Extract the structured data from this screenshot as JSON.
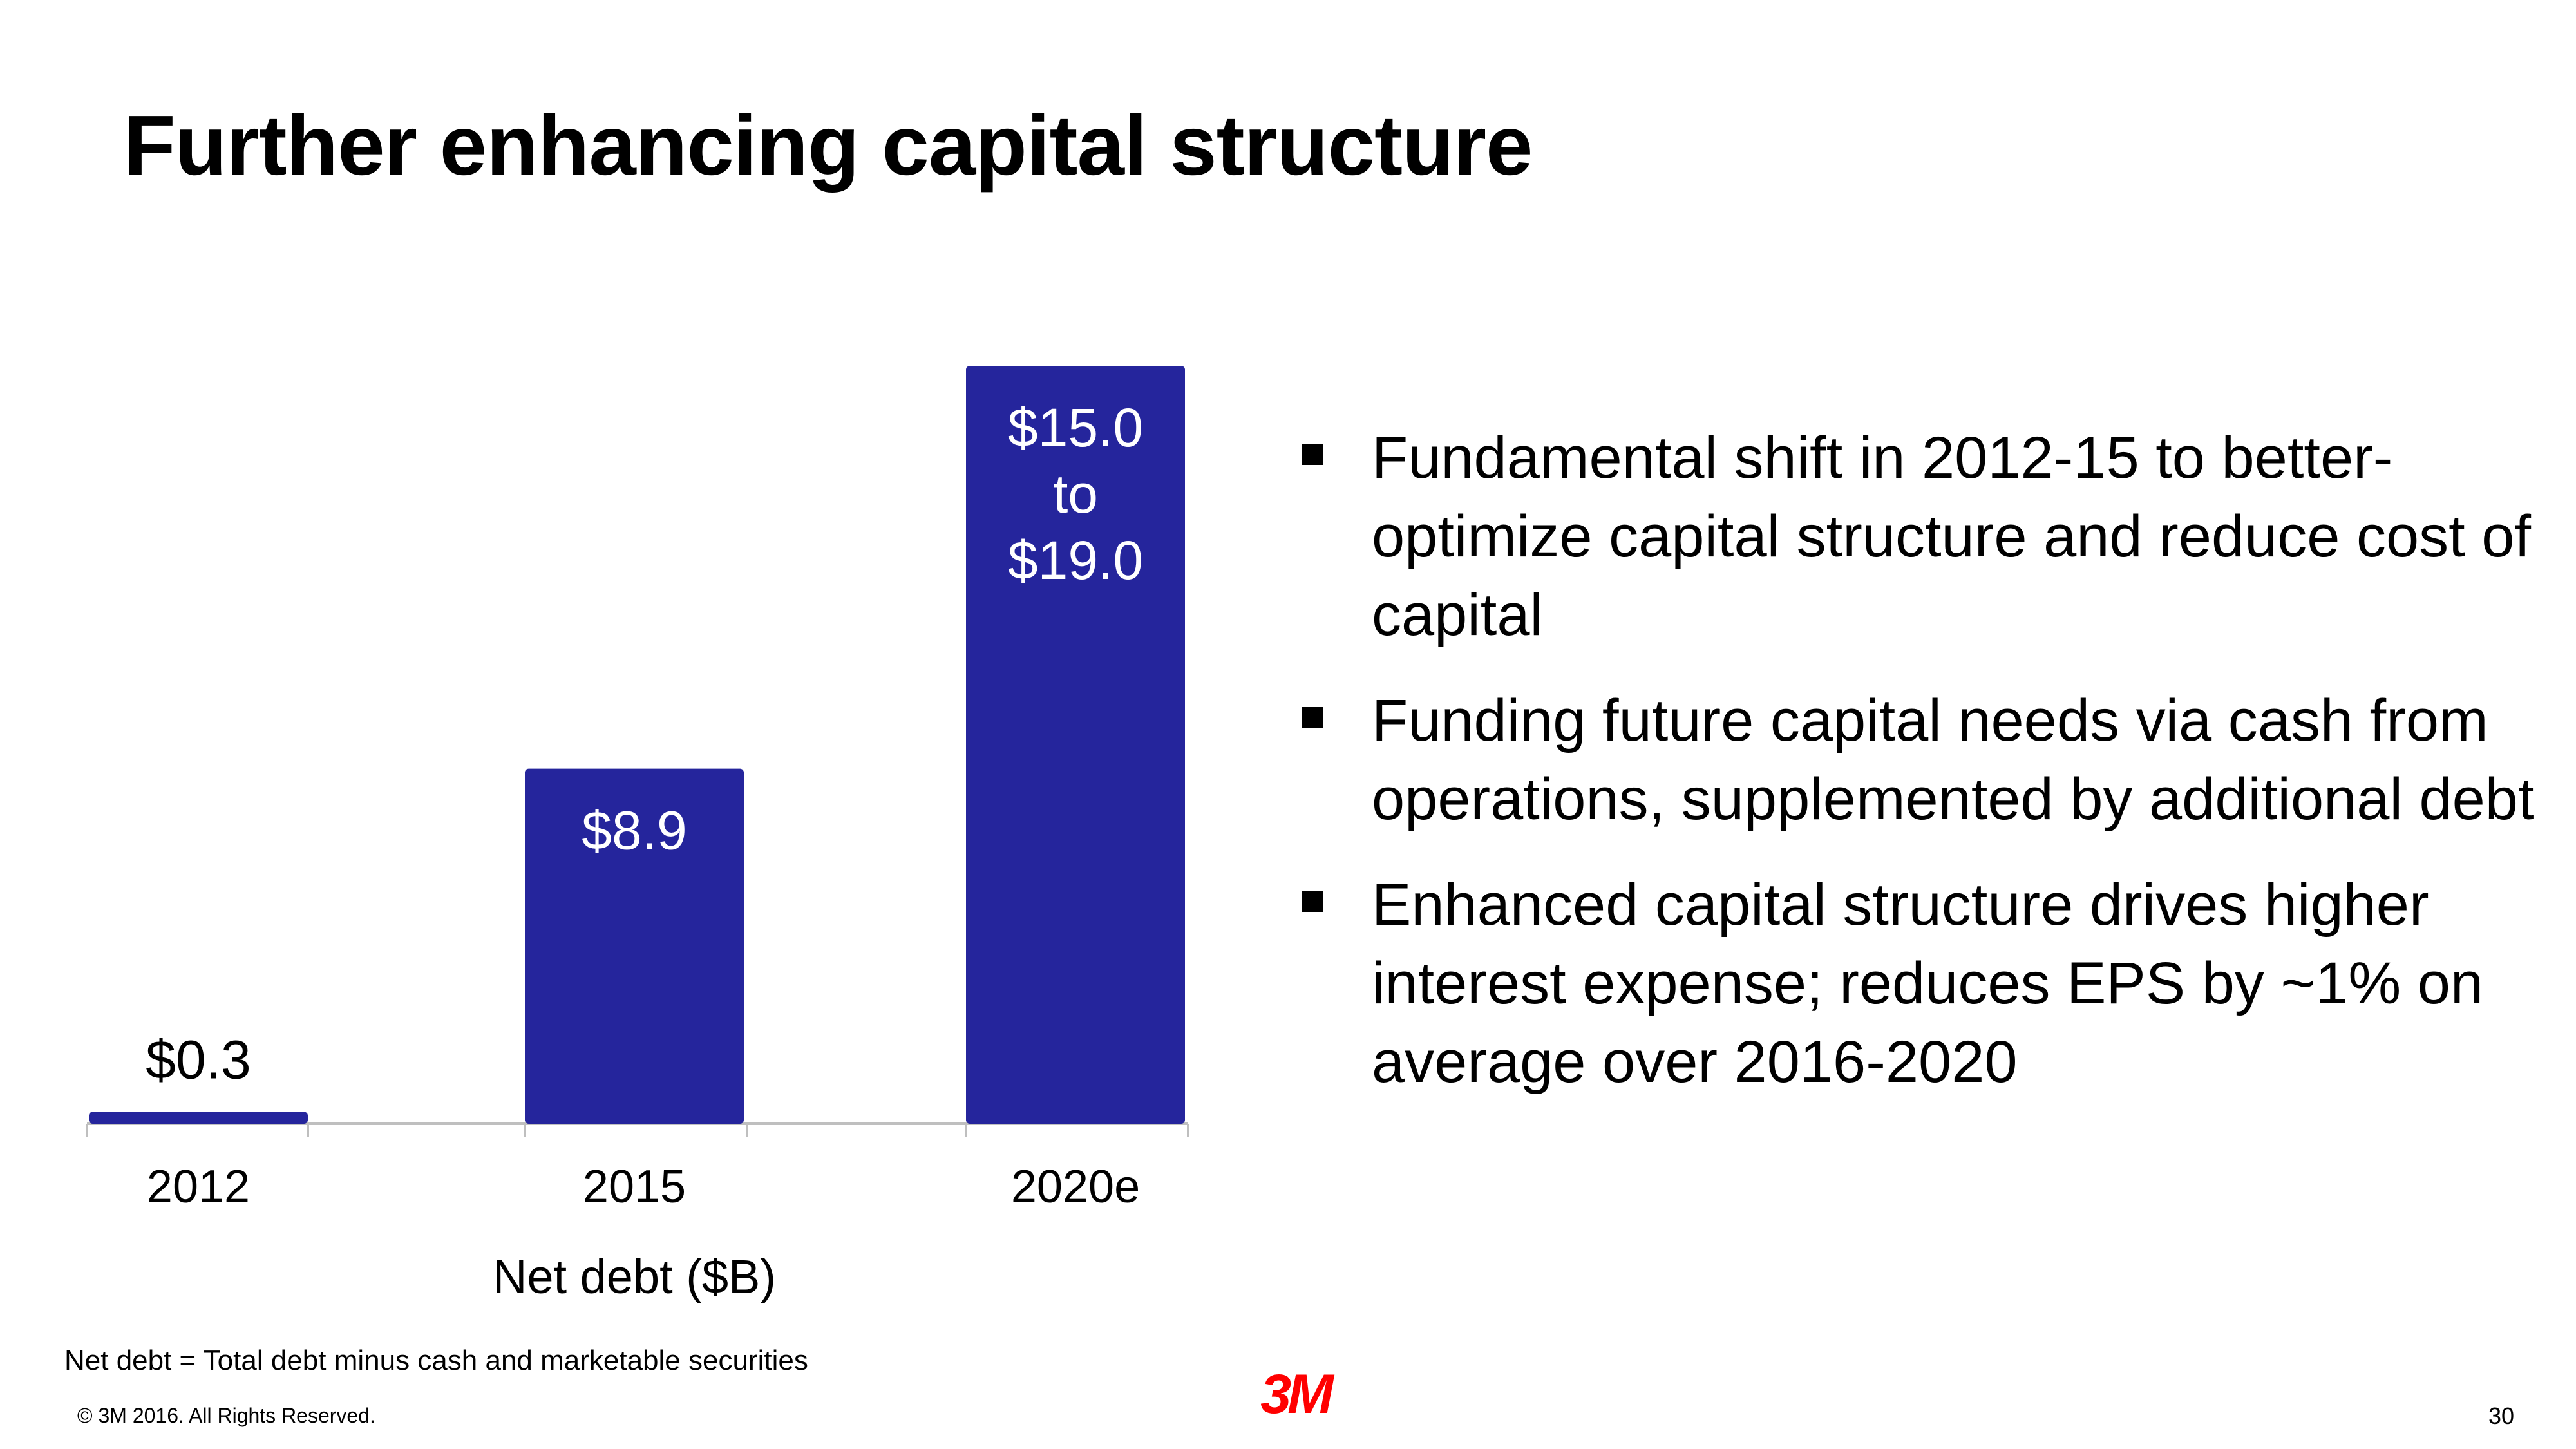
{
  "slide": {
    "title": "Further enhancing capital structure",
    "bullets": [
      "Fundamental shift in 2012-15 to better-optimize capital structure and reduce cost of capital",
      "Funding future capital needs via cash from operations, supplemented by additional debt",
      "Enhanced capital structure drives higher interest expense; reduces EPS by ~1% on average over 2016-2020"
    ],
    "footnote": "Net debt = Total debt minus cash and marketable securities",
    "copyright": "© 3M 2016. All Rights Reserved.",
    "logo": "3M",
    "page_number": "30"
  },
  "colors": {
    "bar": "#25259c",
    "axis": "#bfbfbf",
    "logo": "#ff0000"
  },
  "chart_data": {
    "type": "bar",
    "title": "",
    "xlabel": "Net debt ($B)",
    "ylabel": "",
    "categories": [
      "2012",
      "2015",
      "2020e"
    ],
    "values": [
      0.3,
      8.9,
      19.0
    ],
    "data_labels": [
      [
        "$0.3"
      ],
      [
        "$8.9"
      ],
      [
        "$15.0",
        "to",
        "$19.0"
      ]
    ],
    "ylim": [
      0,
      19.0
    ],
    "grid": false,
    "legend": "none"
  }
}
